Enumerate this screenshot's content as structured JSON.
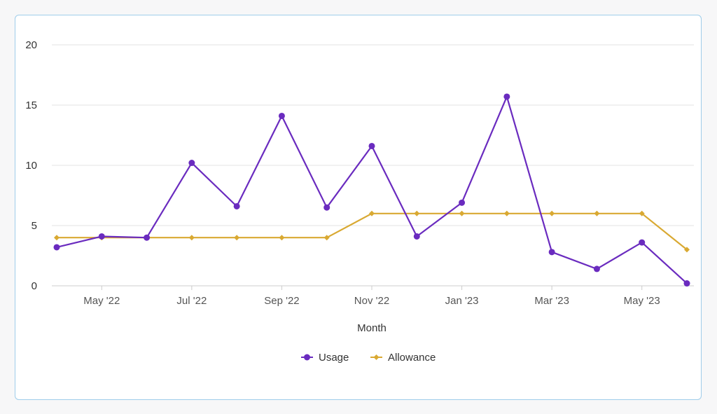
{
  "chart_data": {
    "type": "line",
    "xlabel": "Month",
    "ylim": [
      0,
      20
    ],
    "yticks": [
      0,
      5,
      10,
      15,
      20
    ],
    "x": [
      "2022-04",
      "2022-05",
      "2022-06",
      "2022-07",
      "2022-08",
      "2022-09",
      "2022-10",
      "2022-11",
      "2022-12",
      "2023-01",
      "2023-02",
      "2023-03",
      "2023-04",
      "2023-05",
      "2023-06"
    ],
    "x_tick_labels": [
      {
        "x": "2022-05",
        "label": "May '22"
      },
      {
        "x": "2022-07",
        "label": "Jul '22"
      },
      {
        "x": "2022-09",
        "label": "Sep '22"
      },
      {
        "x": "2022-11",
        "label": "Nov '22"
      },
      {
        "x": "2023-01",
        "label": "Jan '23"
      },
      {
        "x": "2023-03",
        "label": "Mar '23"
      },
      {
        "x": "2023-05",
        "label": "May '23"
      }
    ],
    "grid": "horizontal",
    "legend_position": "bottom-center",
    "series": [
      {
        "name": "Usage",
        "color": "#6a2bbf",
        "marker": "circle",
        "values": [
          3.2,
          4.1,
          4.0,
          10.2,
          6.6,
          14.1,
          6.5,
          11.6,
          4.1,
          6.9,
          15.7,
          2.8,
          1.4,
          3.6,
          0.2
        ]
      },
      {
        "name": "Allowance",
        "color": "#d9a932",
        "marker": "diamond",
        "values": [
          4,
          4,
          4,
          4,
          4,
          4,
          4,
          6,
          6,
          6,
          6,
          6,
          6,
          6,
          3
        ]
      }
    ]
  }
}
